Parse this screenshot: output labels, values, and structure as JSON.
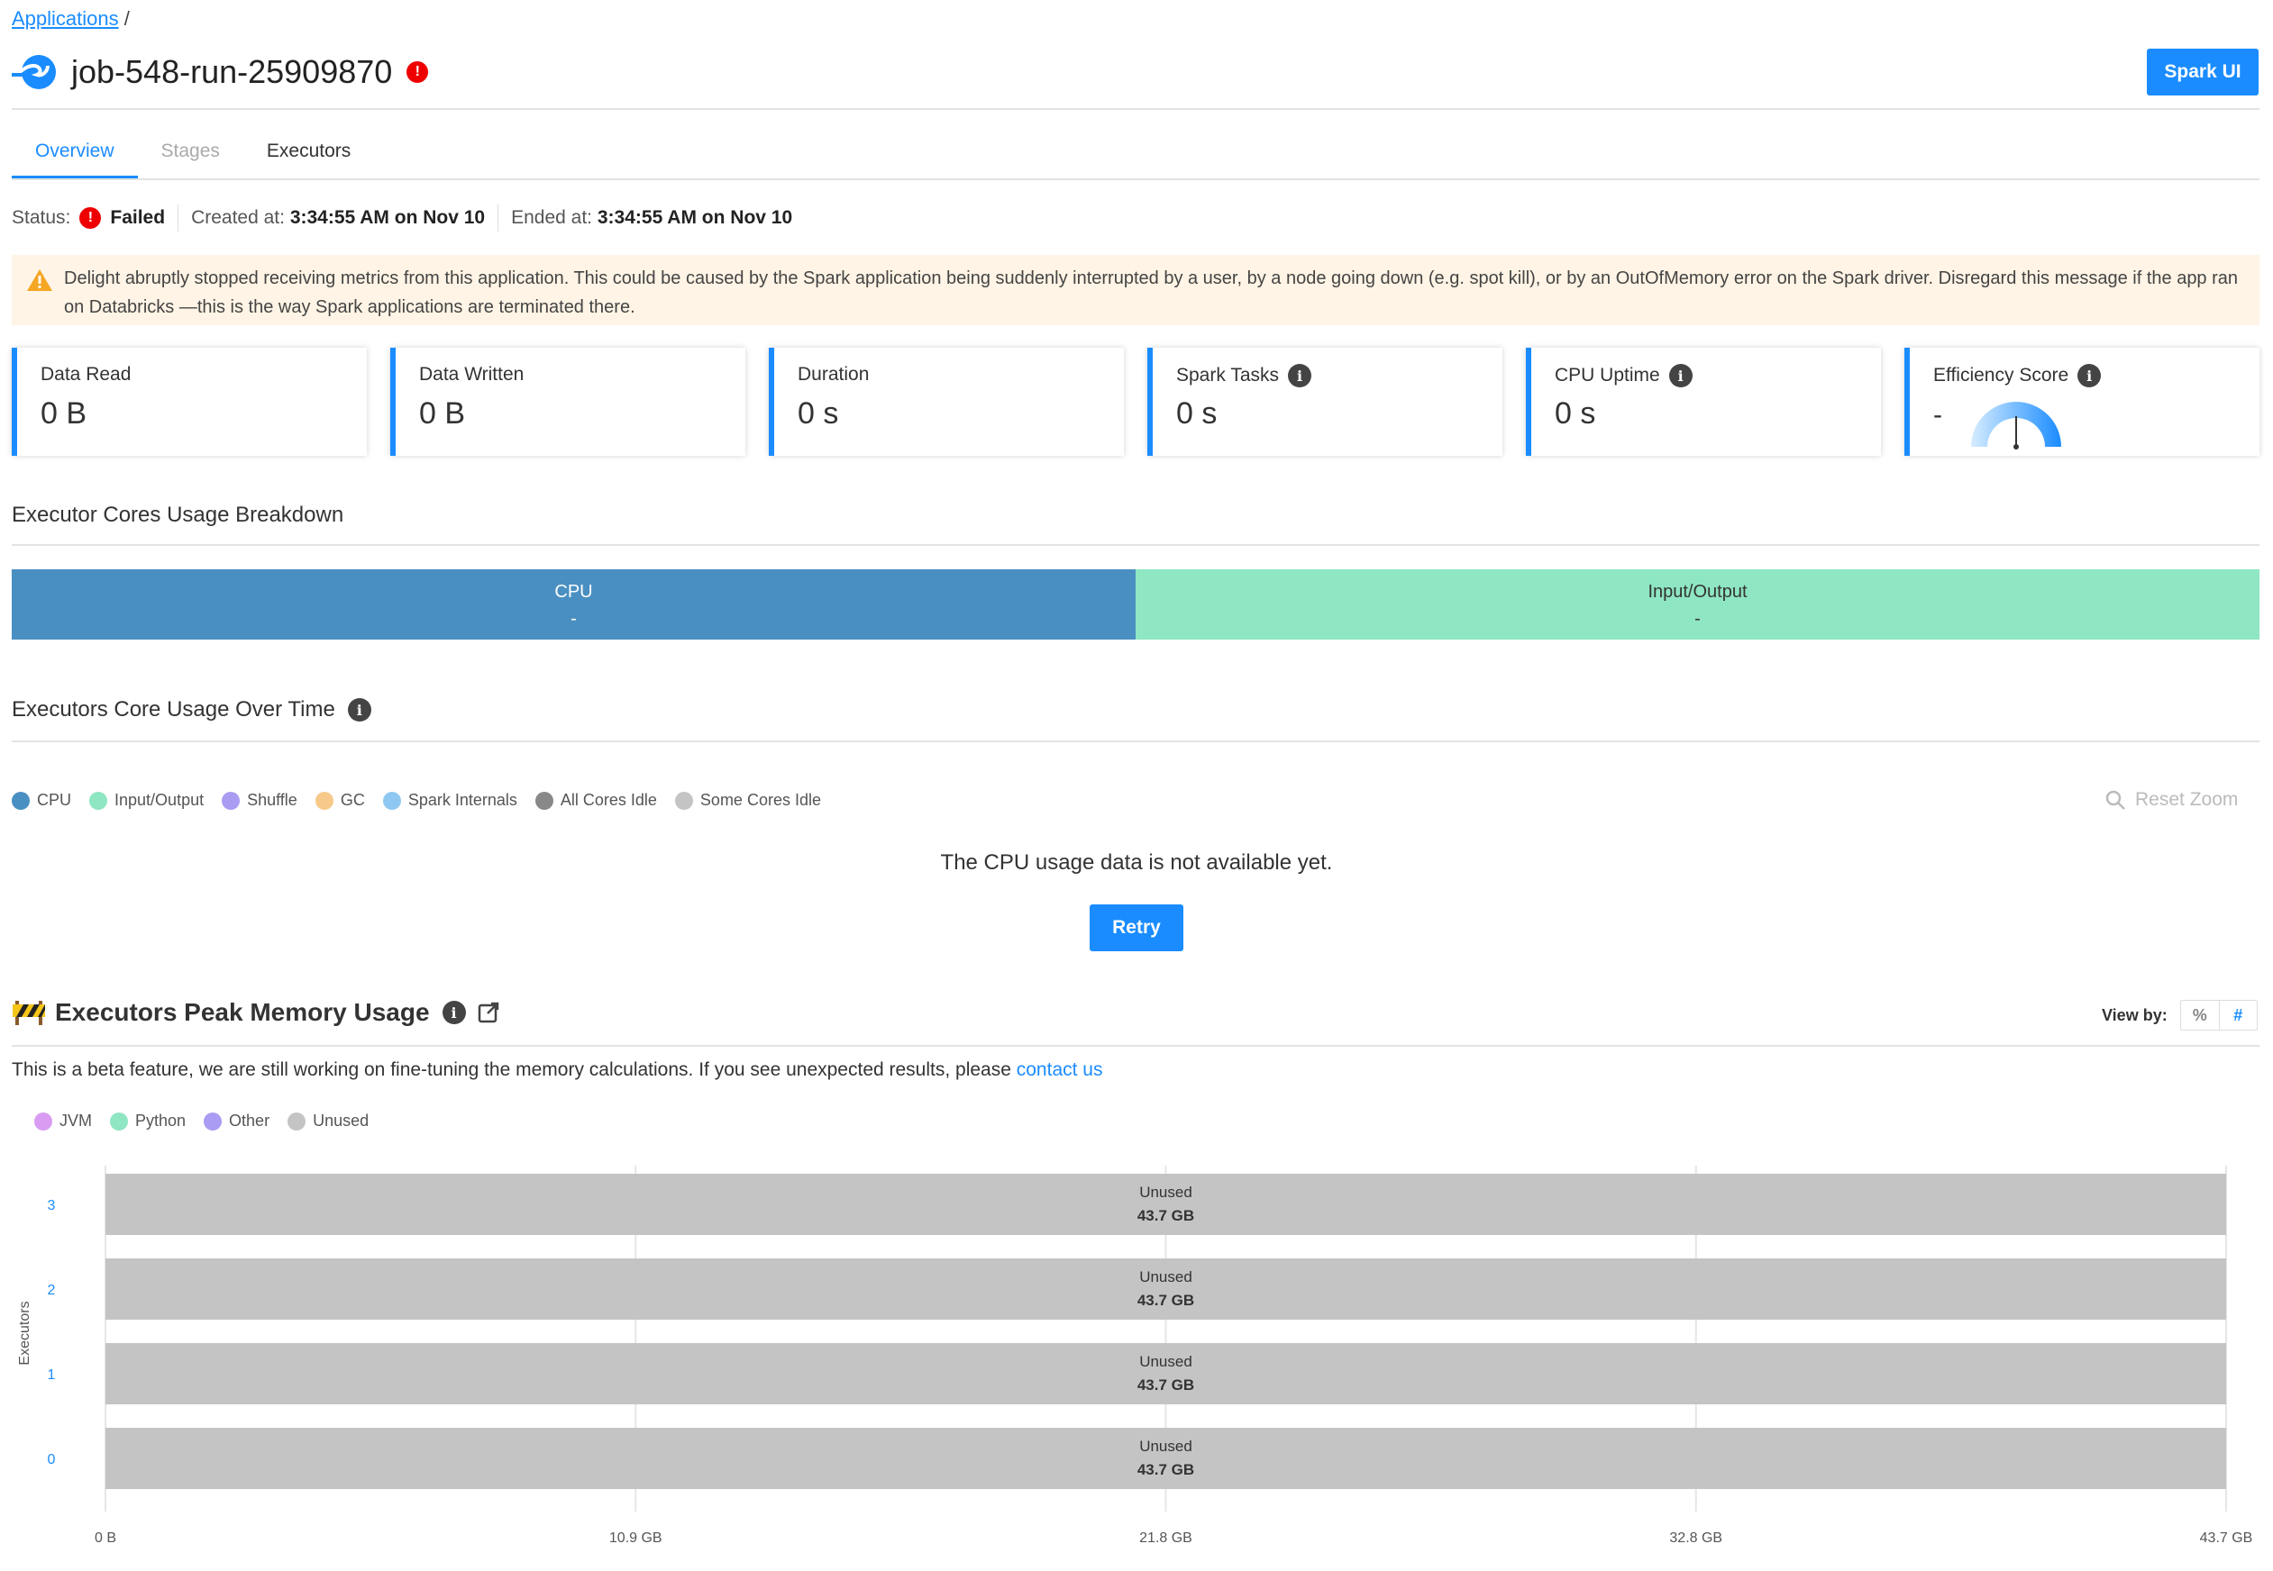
{
  "breadcrumb": {
    "root": "Applications",
    "sep": "/"
  },
  "app": {
    "title": "job-548-run-25909870",
    "error_badge": "!",
    "spark_ui_label": "Spark UI"
  },
  "tabs": [
    {
      "label": "Overview"
    },
    {
      "label": "Stages"
    },
    {
      "label": "Executors"
    }
  ],
  "status": {
    "label": "Status:",
    "badge": "!",
    "value": "Failed",
    "created_label": "Created at:",
    "created_value": "3:34:55 AM on Nov 10",
    "ended_label": "Ended at:",
    "ended_value": "3:34:55 AM on Nov 10"
  },
  "warning": {
    "icon": "warning-triangle-icon",
    "text": "Delight abruptly stopped receiving metrics from this application. This could be caused by the Spark application being suddenly interrupted by a user, by a node going down (e.g. spot kill), or by an OutOfMemory error on the Spark driver. Disregard this message if the app ran on Databricks —this is the way Spark applications are terminated there."
  },
  "metrics": [
    {
      "label": "Data Read",
      "value": "0 B",
      "info": false
    },
    {
      "label": "Data Written",
      "value": "0 B",
      "info": false
    },
    {
      "label": "Duration",
      "value": "0 s",
      "info": false
    },
    {
      "label": "Spark Tasks",
      "value": "0 s",
      "info": true
    },
    {
      "label": "CPU Uptime",
      "value": "0 s",
      "info": true
    },
    {
      "label": "Efficiency Score",
      "value": "-",
      "info": true
    }
  ],
  "info_glyph": "i",
  "breakdown": {
    "title": "Executor Cores Usage Breakdown",
    "cpu": {
      "label": "CPU",
      "value": "-",
      "color": "#4a8fc1"
    },
    "io": {
      "label": "Input/Output",
      "value": "-",
      "color": "#8ee6c2"
    }
  },
  "core_usage": {
    "title": "Executors Core Usage Over Time",
    "legend": [
      {
        "label": "CPU",
        "color": "#4a8fc1"
      },
      {
        "label": "Input/Output",
        "color": "#8ee6c2"
      },
      {
        "label": "Shuffle",
        "color": "#a99cf2"
      },
      {
        "label": "GC",
        "color": "#f7c98b"
      },
      {
        "label": "Spark Internals",
        "color": "#8ec8f2"
      },
      {
        "label": "All Cores Idle",
        "color": "#888888"
      },
      {
        "label": "Some Cores Idle",
        "color": "#c4c4c4"
      }
    ],
    "reset_zoom": "Reset Zoom",
    "empty_message": "The CPU usage data is not available yet.",
    "retry_label": "Retry"
  },
  "memory": {
    "title": "Executors Peak Memory Usage",
    "view_by_label": "View by:",
    "view_options": [
      "%",
      "#"
    ],
    "beta_text": "This is a beta feature, we are still working on fine-tuning the memory calculations. If you see unexpected results, please ",
    "contact_link": "contact us",
    "legend": [
      {
        "label": "JVM",
        "color": "#d99cf2"
      },
      {
        "label": "Python",
        "color": "#8ee6c2"
      },
      {
        "label": "Other",
        "color": "#a99cf2"
      },
      {
        "label": "Unused",
        "color": "#c4c4c4"
      }
    ]
  },
  "chart_data": {
    "type": "bar",
    "orientation": "horizontal",
    "ylabel": "Executors",
    "categories": [
      "3",
      "2",
      "1",
      "0"
    ],
    "series": [
      {
        "name": "Unused",
        "values": [
          43.7,
          43.7,
          43.7,
          43.7
        ],
        "labels": [
          "43.7 GB",
          "43.7 GB",
          "43.7 GB",
          "43.7 GB"
        ],
        "color": "#c4c4c4"
      }
    ],
    "xticks": [
      "0 B",
      "10.9 GB",
      "21.8 GB",
      "32.8 GB",
      "43.7 GB"
    ],
    "xlim": [
      0,
      43.7
    ],
    "grid": true
  }
}
